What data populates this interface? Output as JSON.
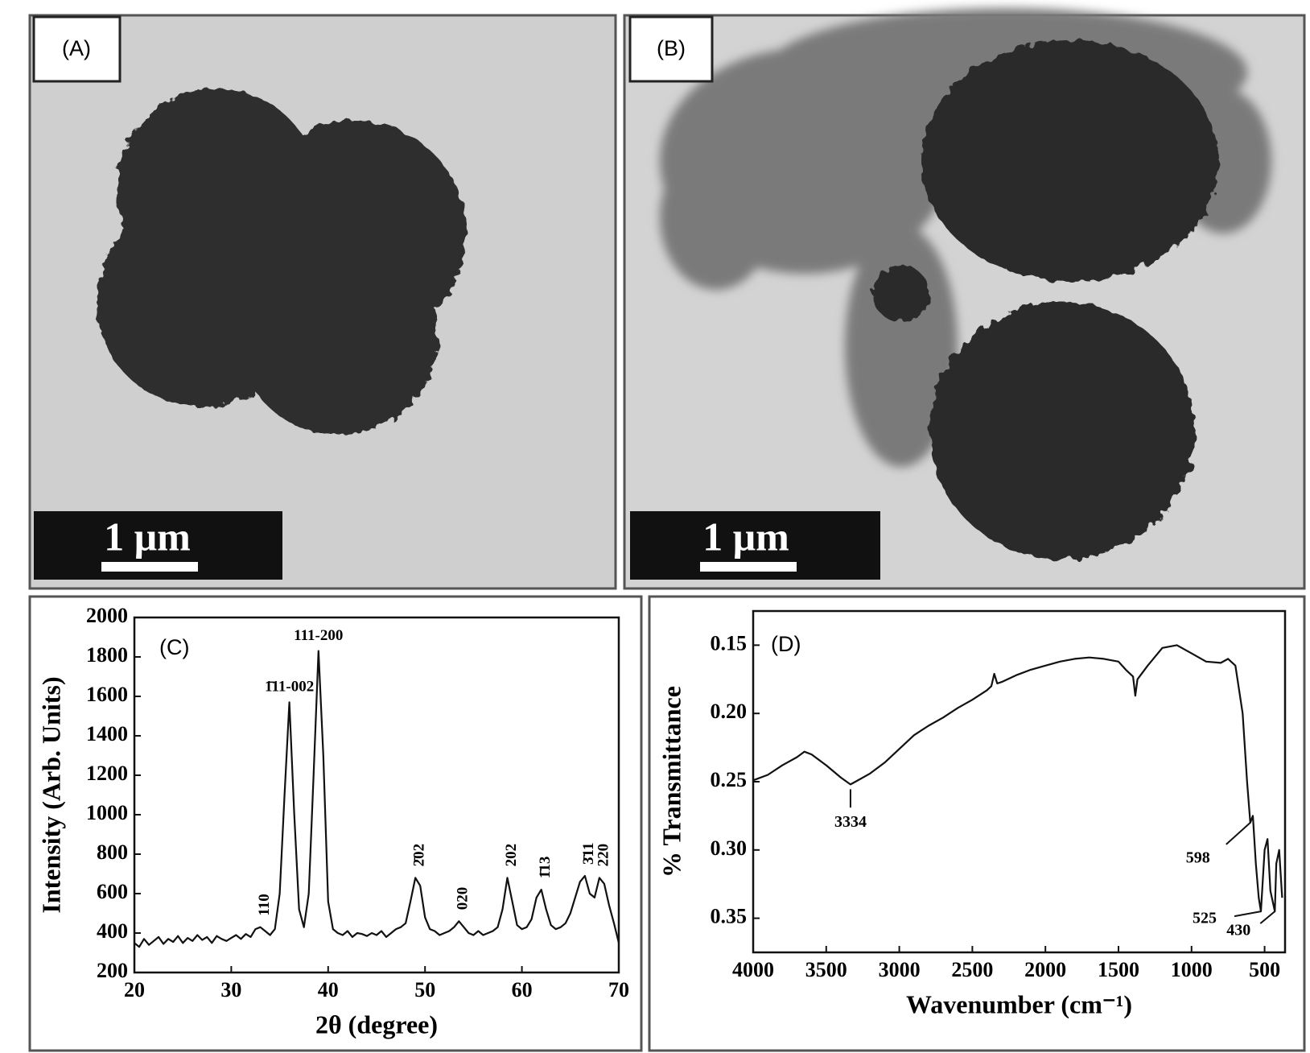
{
  "images": [
    {
      "label": "(A)",
      "scale_bar": "1 μm"
    },
    {
      "label": "(B)",
      "scale_bar": "1 μm"
    }
  ],
  "chart_data": [
    {
      "type": "line",
      "panel_label": "(C)",
      "x_label": "2θ (degree)",
      "y_label": "Intensity (Arb. Units)",
      "color": "#111111",
      "x": [
        20,
        20.5,
        21,
        21.5,
        22,
        22.5,
        23,
        23.5,
        24,
        24.5,
        25,
        25.5,
        26,
        26.5,
        27,
        27.5,
        28,
        28.5,
        29,
        29.5,
        30,
        30.5,
        31,
        31.5,
        32,
        32.5,
        33,
        33.5,
        34,
        34.5,
        35,
        35.5,
        36,
        36.5,
        37,
        37.5,
        38,
        38.5,
        39,
        39.5,
        40,
        40.5,
        41,
        41.5,
        42,
        42.5,
        43,
        43.5,
        44,
        44.5,
        45,
        45.5,
        46,
        46.5,
        47,
        47.5,
        48,
        48.5,
        49,
        49.5,
        50,
        50.5,
        51,
        51.5,
        52,
        52.5,
        53,
        53.5,
        54,
        54.5,
        55,
        55.5,
        56,
        56.5,
        57,
        57.5,
        58,
        58.5,
        59,
        59.5,
        60,
        60.5,
        61,
        61.5,
        62,
        62.5,
        63,
        63.5,
        64,
        64.5,
        65,
        65.5,
        66,
        66.5,
        67,
        67.5,
        68,
        68.5,
        69,
        69.5,
        70
      ],
      "values": [
        350,
        330,
        370,
        340,
        360,
        380,
        345,
        370,
        355,
        385,
        350,
        375,
        360,
        390,
        365,
        380,
        350,
        385,
        370,
        360,
        375,
        390,
        370,
        395,
        380,
        420,
        430,
        410,
        390,
        420,
        600,
        1100,
        1570,
        1000,
        520,
        430,
        600,
        1200,
        1830,
        1300,
        560,
        420,
        400,
        390,
        410,
        380,
        400,
        395,
        385,
        400,
        390,
        410,
        380,
        400,
        420,
        430,
        450,
        560,
        680,
        640,
        480,
        420,
        410,
        390,
        400,
        410,
        430,
        460,
        430,
        400,
        390,
        410,
        390,
        400,
        410,
        430,
        520,
        680,
        560,
        440,
        420,
        430,
        470,
        580,
        620,
        520,
        440,
        420,
        430,
        450,
        500,
        580,
        660,
        690,
        600,
        580,
        680,
        650,
        540,
        450,
        350
      ],
      "xlim": [
        20,
        70
      ],
      "ylim": [
        200,
        2000
      ],
      "xticks": [
        20,
        30,
        40,
        50,
        60,
        70
      ],
      "yticks": [
        200,
        400,
        600,
        800,
        1000,
        1200,
        1400,
        1600,
        1800,
        2000
      ],
      "annotations": [
        {
          "text": "110",
          "x": 33,
          "y": 430,
          "vertical": true
        },
        {
          "text": "1̄11-002",
          "x": 36,
          "y": 1570,
          "vertical": false
        },
        {
          "text": "111-200",
          "x": 39,
          "y": 1830,
          "vertical": false
        },
        {
          "text": "2̄02",
          "x": 49,
          "y": 680,
          "vertical": true
        },
        {
          "text": "020",
          "x": 53.5,
          "y": 460,
          "vertical": true
        },
        {
          "text": "202",
          "x": 58.5,
          "y": 680,
          "vertical": true
        },
        {
          "text": "1̄13",
          "x": 62,
          "y": 620,
          "vertical": true
        },
        {
          "text": "3̄11",
          "x": 66.5,
          "y": 690,
          "vertical": true
        },
        {
          "text": "220",
          "x": 68,
          "y": 680,
          "vertical": true
        }
      ]
    },
    {
      "type": "line",
      "panel_label": "(D)",
      "x_label": "Wavenumber (cm⁻¹)",
      "y_label": "% Transmittance",
      "color": "#111111",
      "x": [
        4000,
        3900,
        3800,
        3700,
        3650,
        3600,
        3500,
        3400,
        3334,
        3300,
        3200,
        3100,
        3000,
        2900,
        2800,
        2700,
        2600,
        2500,
        2400,
        2370,
        2350,
        2330,
        2300,
        2200,
        2100,
        2000,
        1900,
        1800,
        1700,
        1600,
        1500,
        1450,
        1400,
        1385,
        1370,
        1300,
        1200,
        1100,
        1000,
        900,
        800,
        750,
        700,
        650,
        620,
        598,
        580,
        560,
        540,
        525,
        500,
        480,
        460,
        430,
        420,
        400,
        380
      ],
      "values": [
        0.249,
        0.245,
        0.238,
        0.232,
        0.228,
        0.23,
        0.238,
        0.247,
        0.252,
        0.25,
        0.244,
        0.236,
        0.226,
        0.216,
        0.209,
        0.203,
        0.196,
        0.19,
        0.183,
        0.18,
        0.171,
        0.178,
        0.177,
        0.172,
        0.168,
        0.165,
        0.162,
        0.16,
        0.159,
        0.16,
        0.162,
        0.168,
        0.173,
        0.187,
        0.175,
        0.165,
        0.152,
        0.15,
        0.156,
        0.162,
        0.163,
        0.16,
        0.165,
        0.2,
        0.25,
        0.28,
        0.275,
        0.31,
        0.335,
        0.345,
        0.3,
        0.292,
        0.33,
        0.345,
        0.31,
        0.3,
        0.335
      ],
      "xlim": [
        4000,
        360
      ],
      "ylim": [
        0.375,
        0.125
      ],
      "xticks": [
        4000,
        3500,
        3000,
        2500,
        2000,
        1500,
        1000,
        500
      ],
      "yticks": [
        0.15,
        {
          "value": 0.2,
          "label": "0.20"
        },
        0.25,
        {
          "value": 0.3,
          "label": "0.30"
        },
        0.35
      ],
      "annotations": [
        {
          "text": "3334",
          "x": 3334,
          "y": 0.252,
          "vertical": false
        },
        {
          "text": "598",
          "x": 598,
          "y": 0.28,
          "vertical": false
        },
        {
          "text": "525",
          "x": 525,
          "y": 0.345,
          "vertical": false
        },
        {
          "text": "430",
          "x": 430,
          "y": 0.345,
          "vertical": false
        }
      ]
    }
  ]
}
